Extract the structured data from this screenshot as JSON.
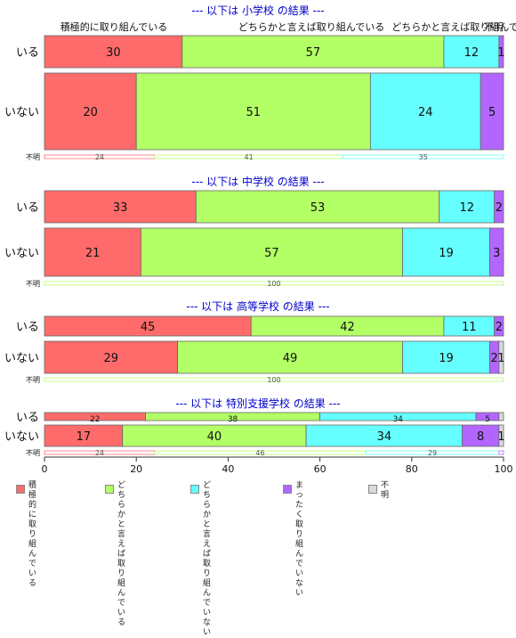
{
  "chart_data": {
    "type": "bar",
    "orientation": "horizontal",
    "stacked": true,
    "xlim": [
      0,
      100
    ],
    "xticks": [
      "0",
      "20",
      "40",
      "60",
      "80",
      "100"
    ],
    "categories_legend": [
      "積極的に取り組んでいる",
      "どちらかと言えば取り組んでいる",
      "どちらかと言えば取り組んでいない",
      "まったく取り組んでいない",
      "不明"
    ],
    "top_labels": [
      "積極的に取り組んでいる",
      "どちらかと言えば取り組んでいる",
      "どちらかと言えば取り組んでいない",
      "不明"
    ],
    "panels": [
      {
        "title": "--- 以下は 小学校 の結果 ---",
        "rows": [
          {
            "label": "いる",
            "values": [
              30,
              57,
              12,
              1,
              0
            ],
            "value_labels": [
              "30",
              "57",
              "12",
              "1",
              ""
            ]
          },
          {
            "label": "いない",
            "values": [
              20,
              51,
              24,
              5,
              0
            ],
            "value_labels": [
              "20",
              "51",
              "24",
              "5",
              ""
            ]
          },
          {
            "label": "不明",
            "values": [
              24,
              41,
              35,
              0,
              0
            ],
            "value_labels": [
              "24",
              "41",
              "35",
              "",
              ""
            ],
            "thin": true
          }
        ]
      },
      {
        "title": "--- 以下は 中学校 の結果 ---",
        "rows": [
          {
            "label": "いる",
            "values": [
              33,
              53,
              12,
              2,
              0
            ],
            "value_labels": [
              "33",
              "53",
              "12",
              "2",
              ""
            ]
          },
          {
            "label": "いない",
            "values": [
              21,
              57,
              19,
              3,
              0
            ],
            "value_labels": [
              "21",
              "57",
              "19",
              "3",
              ""
            ]
          },
          {
            "label": "不明",
            "values": [
              0,
              100,
              0,
              0,
              0
            ],
            "value_labels": [
              "",
              "100",
              "",
              "",
              ""
            ],
            "thin": true
          }
        ]
      },
      {
        "title": "--- 以下は 高等学校 の結果 ---",
        "rows": [
          {
            "label": "いる",
            "values": [
              45,
              42,
              11,
              2,
              0
            ],
            "value_labels": [
              "45",
              "42",
              "11",
              "2",
              ""
            ]
          },
          {
            "label": "いない",
            "values": [
              29,
              49,
              19,
              2,
              1
            ],
            "value_labels": [
              "29",
              "49",
              "19",
              "2",
              "1"
            ]
          },
          {
            "label": "不明",
            "values": [
              0,
              100,
              0,
              0,
              0
            ],
            "value_labels": [
              "",
              "100",
              "",
              "",
              ""
            ],
            "thin": true
          }
        ]
      },
      {
        "title": "--- 以下は 特別支援学校 の結果 ---",
        "rows": [
          {
            "label": "いる",
            "values": [
              22,
              38,
              34,
              5,
              1
            ],
            "value_labels": [
              "22",
              "38",
              "34",
              "5",
              ""
            ],
            "semi": true
          },
          {
            "label": "いない",
            "values": [
              17,
              40,
              34,
              8,
              1
            ],
            "value_labels": [
              "17",
              "40",
              "34",
              "8",
              "1"
            ]
          },
          {
            "label": "不明",
            "values": [
              24,
              46,
              29,
              1,
              0
            ],
            "value_labels": [
              "24",
              "46",
              "29",
              "",
              ""
            ],
            "thin": true
          }
        ]
      }
    ],
    "legend": [
      {
        "label": "積極的に\n取り組んでいる",
        "color": "#ff6b6b"
      },
      {
        "label": "どちらかと言えば\n取り組んでいる",
        "color": "#b3ff66"
      },
      {
        "label": "どちらかと言えば\n取り組んでいない",
        "color": "#66ffff"
      },
      {
        "label": "まったく\n取り組んでいない",
        "color": "#b366ff"
      },
      {
        "label": "不明",
        "color": "#d9d9d9"
      }
    ],
    "colors": [
      "#ff6b6b",
      "#b3ff66",
      "#66ffff",
      "#b366ff",
      "#d9d9d9"
    ],
    "title_color": "#0000cc"
  }
}
